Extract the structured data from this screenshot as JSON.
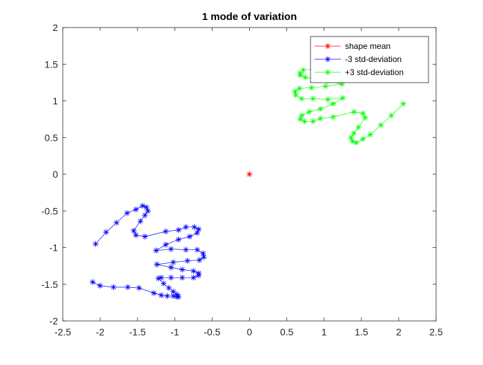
{
  "chart_data": {
    "type": "line",
    "title": "1 mode of variation",
    "xlabel": "",
    "ylabel": "",
    "xlim": [
      -2.5,
      2.5
    ],
    "ylim": [
      -2,
      2
    ],
    "xticks": [
      -2.5,
      -2,
      -1.5,
      -1,
      -0.5,
      0,
      0.5,
      1,
      1.5,
      2,
      2.5
    ],
    "yticks": [
      -2,
      -1.5,
      -1,
      -0.5,
      0,
      0.5,
      1,
      1.5,
      2
    ],
    "xtick_labels": [
      "-2.5",
      "-2",
      "-1.5",
      "-1",
      "-0.5",
      "0",
      "0.5",
      "1",
      "1.5",
      "2",
      "2.5"
    ],
    "ytick_labels": [
      "-2",
      "-1.5",
      "-1",
      "-0.5",
      "0",
      "0.5",
      "1",
      "1.5",
      "2"
    ],
    "grid": false,
    "legend_position": "top-right",
    "marker": "*",
    "series": [
      {
        "name": "shape mean",
        "color": "#ff0000",
        "points": [
          [
            0,
            0
          ]
        ]
      },
      {
        "name": "-3 std-deviation",
        "color": "#0000ff",
        "points": [
          [
            -2.06,
            -0.95
          ],
          [
            -1.92,
            -0.79
          ],
          [
            -1.78,
            -0.66
          ],
          [
            -1.64,
            -0.53
          ],
          [
            -1.52,
            -0.48
          ],
          [
            -1.43,
            -0.43
          ],
          [
            -1.38,
            -0.45
          ],
          [
            -1.36,
            -0.5
          ],
          [
            -1.4,
            -0.56
          ],
          [
            -1.46,
            -0.64
          ],
          [
            -1.55,
            -0.77
          ],
          [
            -1.52,
            -0.83
          ],
          [
            -1.4,
            -0.85
          ],
          [
            -1.12,
            -0.78
          ],
          [
            -0.95,
            -0.76
          ],
          [
            -0.85,
            -0.72
          ],
          [
            -0.74,
            -0.72
          ],
          [
            -0.68,
            -0.75
          ],
          [
            -0.7,
            -0.8
          ],
          [
            -0.8,
            -0.85
          ],
          [
            -0.95,
            -0.89
          ],
          [
            -1.12,
            -0.96
          ],
          [
            -1.25,
            -1.04
          ],
          [
            -1.05,
            -1.02
          ],
          [
            -0.85,
            -1.03
          ],
          [
            -0.7,
            -1.03
          ],
          [
            -0.62,
            -1.08
          ],
          [
            -0.61,
            -1.13
          ],
          [
            -0.67,
            -1.17
          ],
          [
            -0.83,
            -1.18
          ],
          [
            -1.02,
            -1.2
          ],
          [
            -1.24,
            -1.23
          ],
          [
            -1.05,
            -1.27
          ],
          [
            -0.9,
            -1.3
          ],
          [
            -0.75,
            -1.32
          ],
          [
            -0.68,
            -1.35
          ],
          [
            -0.68,
            -1.38
          ],
          [
            -0.75,
            -1.41
          ],
          [
            -0.9,
            -1.41
          ],
          [
            -1.05,
            -1.41
          ],
          [
            -1.18,
            -1.41
          ],
          [
            -1.22,
            -1.42
          ],
          [
            -1.15,
            -1.49
          ],
          [
            -1.08,
            -1.55
          ],
          [
            -1.02,
            -1.6
          ],
          [
            -0.97,
            -1.64
          ],
          [
            -0.95,
            -1.67
          ],
          [
            -0.97,
            -1.67
          ],
          [
            -1.02,
            -1.66
          ],
          [
            -1.1,
            -1.66
          ],
          [
            -1.18,
            -1.65
          ],
          [
            -1.28,
            -1.62
          ],
          [
            -1.48,
            -1.55
          ],
          [
            -1.63,
            -1.54
          ],
          [
            -1.82,
            -1.54
          ],
          [
            -2.0,
            -1.52
          ],
          [
            -2.1,
            -1.47
          ]
        ]
      },
      {
        "name": "+3 std-deviation",
        "color": "#00ff00",
        "points": [
          [
            2.06,
            0.96
          ],
          [
            1.9,
            0.8
          ],
          [
            1.76,
            0.67
          ],
          [
            1.62,
            0.54
          ],
          [
            1.52,
            0.48
          ],
          [
            1.43,
            0.43
          ],
          [
            1.38,
            0.45
          ],
          [
            1.36,
            0.5
          ],
          [
            1.4,
            0.56
          ],
          [
            1.46,
            0.64
          ],
          [
            1.55,
            0.77
          ],
          [
            1.52,
            0.83
          ],
          [
            1.4,
            0.85
          ],
          [
            1.12,
            0.78
          ],
          [
            0.95,
            0.76
          ],
          [
            0.85,
            0.72
          ],
          [
            0.74,
            0.72
          ],
          [
            0.68,
            0.75
          ],
          [
            0.7,
            0.8
          ],
          [
            0.8,
            0.85
          ],
          [
            0.95,
            0.89
          ],
          [
            1.12,
            0.96
          ],
          [
            1.25,
            1.04
          ],
          [
            1.05,
            1.02
          ],
          [
            0.85,
            1.03
          ],
          [
            0.7,
            1.03
          ],
          [
            0.62,
            1.08
          ],
          [
            0.61,
            1.13
          ],
          [
            0.67,
            1.17
          ],
          [
            0.83,
            1.18
          ],
          [
            1.02,
            1.2
          ],
          [
            1.24,
            1.23
          ],
          [
            1.05,
            1.27
          ],
          [
            0.9,
            1.3
          ],
          [
            0.75,
            1.32
          ],
          [
            0.68,
            1.35
          ],
          [
            0.68,
            1.38
          ],
          [
            0.72,
            1.42
          ],
          [
            0.85,
            1.43
          ],
          [
            1.0,
            1.43
          ],
          [
            1.12,
            1.44
          ],
          [
            1.22,
            1.45
          ]
        ]
      }
    ]
  }
}
